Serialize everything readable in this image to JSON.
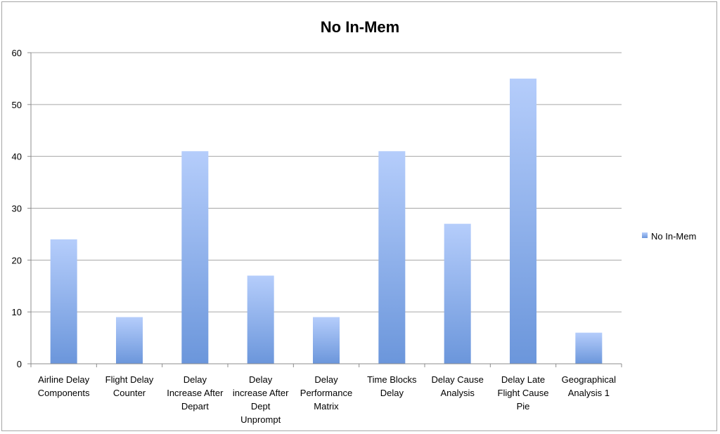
{
  "chart_data": {
    "type": "bar",
    "title": "No In-Mem",
    "xlabel": "",
    "ylabel": "",
    "categories": [
      [
        "Airline Delay",
        "Components"
      ],
      [
        "Flight Delay",
        "Counter"
      ],
      [
        "Delay",
        "Increase After",
        "Depart"
      ],
      [
        "Delay",
        "increase After",
        "Dept",
        "Unprompt"
      ],
      [
        "Delay",
        "Performance",
        "Matrix"
      ],
      [
        "Time Blocks",
        "Delay"
      ],
      [
        "Delay Cause",
        "Analysis"
      ],
      [
        "Delay Late",
        "Flight Cause",
        "Pie"
      ],
      [
        "Geographical",
        "Analysis 1"
      ]
    ],
    "series": [
      {
        "name": "No In-Mem",
        "values": [
          24,
          9,
          41,
          17,
          9,
          41,
          27,
          55,
          6
        ]
      }
    ],
    "ylim": [
      0,
      60
    ],
    "yticks": [
      "0",
      "10",
      "20",
      "30",
      "40",
      "50",
      "60"
    ],
    "grid": true,
    "legend_position": "right",
    "colors": {
      "bar_top": "#b5cdfb",
      "bar_bottom": "#6b96db",
      "grid": "#a6a6a6",
      "axis": "#8c8c8c"
    }
  }
}
